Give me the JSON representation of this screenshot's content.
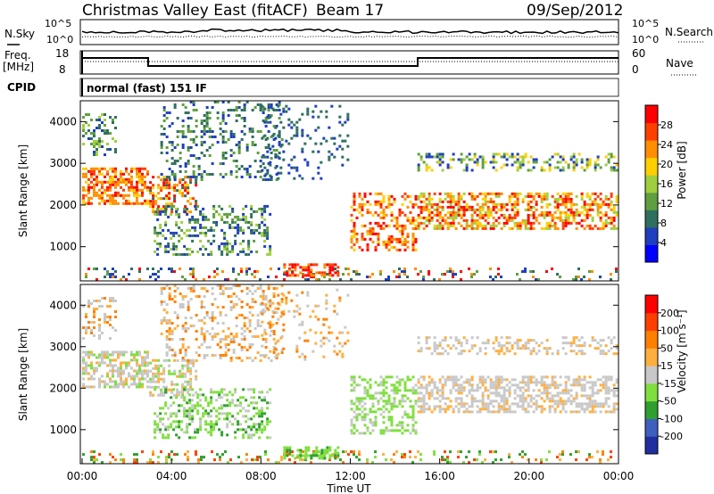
{
  "header": {
    "station": "Christmas Valley East (fitACF)",
    "beam": "Beam 17",
    "date": "09/Sep/2012"
  },
  "noise_panel": {
    "left_label": "N.Sky",
    "left_ticks": [
      "10^5",
      "10^0"
    ],
    "right_ticks": [
      "10^5",
      "10^0"
    ],
    "right_label": "N.Search"
  },
  "freq_panel": {
    "left_label_1": "Freq.",
    "left_label_2": "[MHz]",
    "left_ticks": [
      "18",
      "8"
    ],
    "right_ticks": [
      "60",
      "0"
    ],
    "right_label": "Nave",
    "cpid_label": "CPID",
    "cpid_value": "normal (fast) 151 IF"
  },
  "chart_data": [
    {
      "type": "heatmap",
      "name": "power",
      "ylabel": "Slant Range [km]",
      "yticks": [
        "4000",
        "3000",
        "2000",
        "1000"
      ],
      "ylim": [
        180,
        4500
      ],
      "xlim": [
        "00:00",
        "24:00"
      ],
      "colorbar": {
        "label": "Power [dB]",
        "ticks": [
          "28",
          "24",
          "20",
          "16",
          "12",
          "8",
          "4"
        ],
        "colors": [
          "#0000ff",
          "#1f3fbf",
          "#2f6f5f",
          "#5f9f3f",
          "#9fcf3f",
          "#ffcf00",
          "#ff8f00",
          "#ff3f00",
          "#ff0000"
        ]
      }
    },
    {
      "type": "heatmap",
      "name": "velocity",
      "ylabel": "Slant Range [km]",
      "yticks": [
        "4000",
        "3000",
        "2000",
        "1000"
      ],
      "ylim": [
        180,
        4500
      ],
      "xlim": [
        "00:00",
        "24:00"
      ],
      "xticks": [
        "00:00",
        "04:00",
        "08:00",
        "12:00",
        "16:00",
        "20:00",
        "00:00"
      ],
      "xlabel": "Time UT",
      "colorbar": {
        "label": "Velocity [m s⁻¹]",
        "ticks": [
          "200",
          "100",
          "50",
          "15",
          "-15",
          "-50",
          "-100",
          "-200"
        ],
        "colors": [
          "#1f2f9f",
          "#3f5fbf",
          "#2f9f2f",
          "#7fdf3f",
          "#c8c8c8",
          "#ffaf3f",
          "#ff7f00",
          "#ff3f00",
          "#ff0000"
        ]
      }
    }
  ]
}
